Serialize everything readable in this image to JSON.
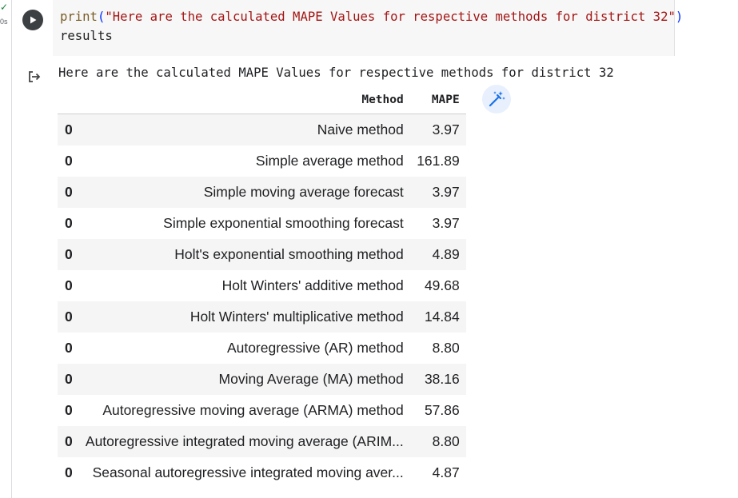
{
  "gutter": {
    "status": "✓",
    "exec_time": "0s"
  },
  "code": {
    "fn": "print",
    "arg": "\"Here are the calculated MAPE Values for respective methods for district 32\"",
    "line2": "results"
  },
  "output": {
    "stdout": "Here are the calculated MAPE Values for respective methods for district 32",
    "table": {
      "index_header": "",
      "columns": [
        "Method",
        "MAPE"
      ],
      "rows": [
        {
          "index": "0",
          "method": "Naive method",
          "mape": "3.97"
        },
        {
          "index": "0",
          "method": "Simple average method",
          "mape": "161.89"
        },
        {
          "index": "0",
          "method": "Simple moving average forecast",
          "mape": "3.97"
        },
        {
          "index": "0",
          "method": "Simple exponential smoothing forecast",
          "mape": "3.97"
        },
        {
          "index": "0",
          "method": "Holt's exponential smoothing method",
          "mape": "4.89"
        },
        {
          "index": "0",
          "method": "Holt Winters' additive method",
          "mape": "49.68"
        },
        {
          "index": "0",
          "method": "Holt Winters' multiplicative method",
          "mape": "14.84"
        },
        {
          "index": "0",
          "method": "Autoregressive (AR) method",
          "mape": "8.80"
        },
        {
          "index": "0",
          "method": "Moving Average (MA) method",
          "mape": "38.16"
        },
        {
          "index": "0",
          "method": "Autoregressive moving average (ARMA) method",
          "mape": "57.86"
        },
        {
          "index": "0",
          "method": "Autoregressive integrated moving average (ARIM...",
          "mape": "8.80"
        },
        {
          "index": "0",
          "method": "Seasonal autoregressive integrated moving aver...",
          "mape": "4.87"
        }
      ]
    }
  },
  "icons": {
    "run": "play-icon",
    "output": "output-redirect-icon",
    "magic": "magic-wand-icon"
  },
  "colors": {
    "string": "#a31515",
    "function": "#795e26",
    "paren": "#0431fa",
    "magic_bg": "#e8f0fe",
    "magic_fg": "#1a73e8"
  }
}
